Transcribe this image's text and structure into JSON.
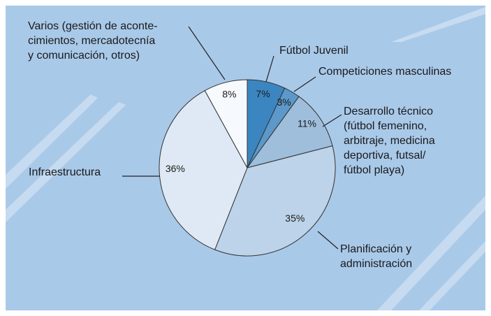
{
  "chart_data": {
    "type": "pie",
    "categories": [
      [
        "Fútbol Juvenil"
      ],
      [
        "Competiciones masculinas"
      ],
      [
        "Desarrollo técnico",
        "(fútbol femenino,",
        "arbitraje, medicina",
        "deportiva, futsal/",
        "fútbol playa)"
      ],
      [
        "Planificación y",
        "administración"
      ],
      [
        "Infraestructura"
      ],
      [
        "Varios (gestión de aconte-",
        "cimientos, mercadotecnía",
        "y comunicación, otros)"
      ]
    ],
    "values": [
      7,
      3,
      11,
      35,
      36,
      8
    ],
    "value_labels": [
      "7%",
      "3%",
      "11%",
      "35%",
      "36%",
      "8%"
    ],
    "colors": [
      "#3b86c1",
      "#5c98c9",
      "#9fbedc",
      "#bdd3e9",
      "#dee9f5",
      "#f6f9fd"
    ]
  }
}
